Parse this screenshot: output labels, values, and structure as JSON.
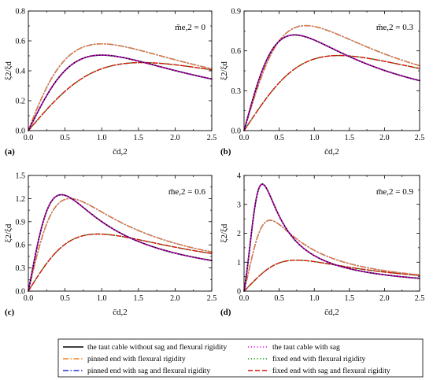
{
  "chart_data": [
    {
      "panel_label": "(a)",
      "type": "line",
      "annotation": "m̄e,2 = 0",
      "xlabel": "c̄d,2",
      "ylabel": "ξ2/ξd",
      "xlim": [
        0,
        2.5
      ],
      "ylim": [
        0,
        0.8
      ],
      "xticks": [
        "0.0",
        "0.5",
        "1.0",
        "1.5",
        "2.0",
        "2.5"
      ],
      "yticks": [
        "0.0",
        "0.2",
        "0.4",
        "0.6",
        "0.8"
      ],
      "curves": {
        "taut": {
          "peak_x": 1.0,
          "peak_y": 0.505,
          "end_y": 0.34
        },
        "pinned": {
          "peak_x": 1.0,
          "peak_y": 0.58,
          "end_y": 0.44
        },
        "fixed": {
          "peak_x": 1.55,
          "peak_y": 0.455,
          "end_y": 0.4
        }
      }
    },
    {
      "panel_label": "(b)",
      "type": "line",
      "annotation": "m̄e,2 = 0.3",
      "xlabel": "c̄d,2",
      "ylabel": "ξ2/ξd",
      "xlim": [
        0,
        2.5
      ],
      "ylim": [
        0,
        0.9
      ],
      "xticks": [
        "0.0",
        "0.5",
        "1.0",
        "1.5",
        "2.0",
        "2.5"
      ],
      "yticks": [
        "0.0",
        "0.3",
        "0.6",
        "0.9"
      ],
      "curves": {
        "taut": {
          "peak_x": 0.72,
          "peak_y": 0.72,
          "end_y": 0.37
        },
        "pinned": {
          "peak_x": 0.88,
          "peak_y": 0.79,
          "end_y": 0.48
        },
        "fixed": {
          "peak_x": 1.35,
          "peak_y": 0.565,
          "end_y": 0.45
        }
      }
    },
    {
      "panel_label": "(c)",
      "type": "line",
      "annotation": "m̄e,2 = 0.6",
      "xlabel": "c̄d,2",
      "ylabel": "ξ2/ξd",
      "xlim": [
        0,
        2.5
      ],
      "ylim": [
        0,
        1.5
      ],
      "xticks": [
        "0.0",
        "0.5",
        "1.0",
        "1.5",
        "2.0",
        "2.5"
      ],
      "yticks": [
        "0.0",
        "0.3",
        "0.6",
        "0.9",
        "1.2",
        "1.5"
      ],
      "curves": {
        "taut": {
          "peak_x": 0.45,
          "peak_y": 1.25,
          "end_y": 0.38
        },
        "pinned": {
          "peak_x": 0.57,
          "peak_y": 1.2,
          "end_y": 0.5
        },
        "fixed": {
          "peak_x": 0.95,
          "peak_y": 0.74,
          "end_y": 0.48
        }
      }
    },
    {
      "panel_label": "(d)",
      "type": "line",
      "annotation": "m̄e,2 = 0.9",
      "xlabel": "c̄d,2",
      "ylabel": "ξ2/ξd",
      "xlim": [
        0,
        2.5
      ],
      "ylim": [
        0,
        4
      ],
      "xticks": [
        "0.0",
        "0.5",
        "1.0",
        "1.5",
        "2.0",
        "2.5"
      ],
      "yticks": [
        "0",
        "1",
        "2",
        "3",
        "4"
      ],
      "curves": {
        "taut": {
          "peak_x": 0.26,
          "peak_y": 3.7,
          "end_y": 0.4
        },
        "pinned": {
          "peak_x": 0.37,
          "peak_y": 2.45,
          "end_y": 0.52
        },
        "fixed": {
          "peak_x": 0.75,
          "peak_y": 1.07,
          "end_y": 0.5
        }
      }
    }
  ],
  "legend": [
    {
      "key": "taut",
      "label": "the taut cable without sag and flexural rigidity",
      "color": "#000000",
      "dash": "solid"
    },
    {
      "key": "tautsag",
      "label": "the taut cable with sag",
      "color": "#ee00ee",
      "dash": "dot"
    },
    {
      "key": "pinned",
      "label": "pinned end with flexural rigidity",
      "color": "#f08020",
      "dash": "dashdot"
    },
    {
      "key": "fixedfr",
      "label": "fixed end with flexural rigidity",
      "color": "#009900",
      "dash": "dot"
    },
    {
      "key": "pinnedsag",
      "label": "pinned end with sag and flexural rigidity",
      "color": "#2030dd",
      "dash": "dashdot"
    },
    {
      "key": "fixedsag",
      "label": "fixed end with sag and flexural rigidity",
      "color": "#e01010",
      "dash": "dash"
    }
  ]
}
